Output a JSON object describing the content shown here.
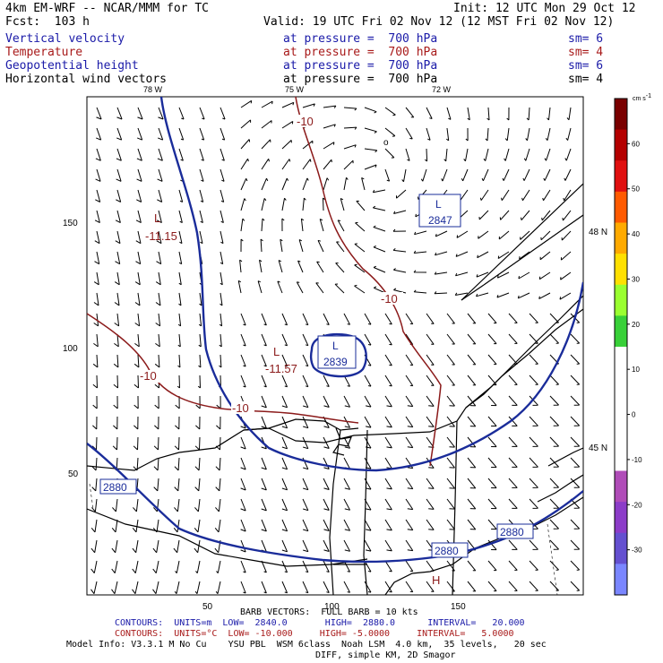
{
  "header": {
    "model": "4km EM-WRF -- NCAR/MMM for TC",
    "init": "Init: 12 UTC Mon 29 Oct 12",
    "fcst": "Fcst:  103 h",
    "valid": "Valid: 19 UTC Fri 02 Nov 12 (12 MST Fri 02 Nov 12)"
  },
  "fields": [
    {
      "name": "Vertical velocity",
      "level": "at pressure =  700 hPa",
      "sm": "sm= 6",
      "color": "#1a1aa8"
    },
    {
      "name": "Temperature",
      "level": "at pressure =  700 hPa",
      "sm": "sm= 4",
      "color": "#a81a1a"
    },
    {
      "name": "Geopotential height",
      "level": "at pressure =  700 hPa",
      "sm": "sm= 6",
      "color": "#1a1aa8"
    },
    {
      "name": "Horizontal wind vectors",
      "level": "at pressure =  700 hPa",
      "sm": "sm= 4",
      "color": "#000000"
    }
  ],
  "map": {
    "lon_labels": [
      "78 W",
      "75 W",
      "72 W"
    ],
    "lat_labels": [
      "48 N",
      "45 N"
    ],
    "x_ticks": [
      "50",
      "100",
      "150"
    ],
    "y_ticks": [
      "150",
      "100",
      "50"
    ],
    "height_contour_labels": [
      "2847",
      "2839",
      "2880",
      "2880",
      "2880"
    ],
    "temp_contour_labels": [
      "-10",
      "-10",
      "-10",
      "-10"
    ],
    "low_labels": [
      "L",
      "L",
      "L",
      "L"
    ],
    "low_values": [
      "-11.15",
      "-11.57"
    ],
    "high_label": "H",
    "station_marker": "o"
  },
  "colorbar": {
    "unit": "cm s",
    "unit_exp": "-1",
    "ticks": [
      "60",
      "50",
      "40",
      "30",
      "20",
      "10",
      "0",
      "-10",
      "-20",
      "-30"
    ],
    "colors": [
      "#7a0000",
      "#b40000",
      "#e01010",
      "#ff5a00",
      "#ffaa00",
      "#ffe000",
      "#9aff30",
      "#38d038",
      "#ffffff",
      "#ffffff",
      "#ffffff",
      "#ffffff",
      "#b04cb8",
      "#8c3cc8",
      "#6450d0",
      "#7a86ff"
    ]
  },
  "footer": {
    "barb": "BARB VECTORS:  FULL BARB = 10 kts",
    "contours1": "CONTOURS:  UNITS=m  LOW=  2840.0       HIGH=  2880.0      INTERVAL=   20.000",
    "contours2": "CONTOURS:  UNITS=°C  LOW= -10.000     HIGH= -5.0000     INTERVAL=   5.0000",
    "model_info": "Model Info: V3.3.1 M No Cu    YSU PBL  WSM 6class  Noah LSM  4.0 km,  35 levels,   20 sec",
    "diff": "DIFF, simple KM, 2D Smagor"
  }
}
